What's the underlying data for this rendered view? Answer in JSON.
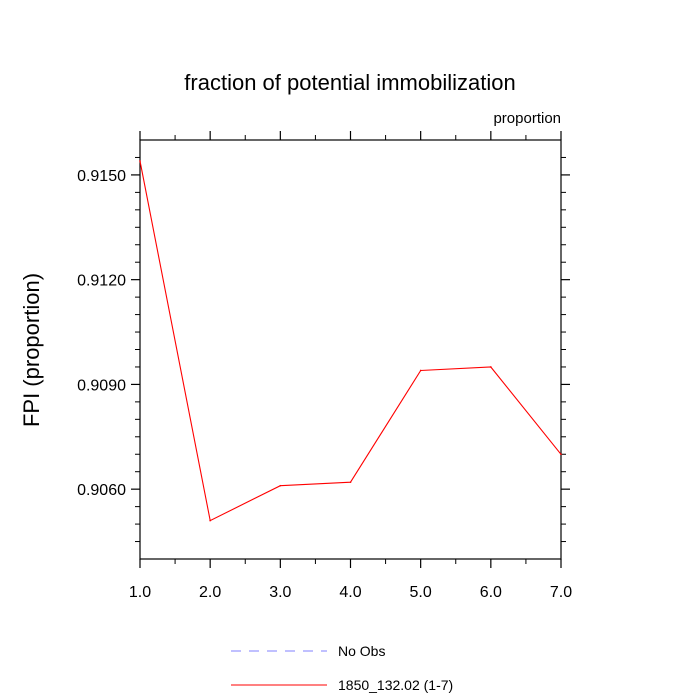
{
  "chart_data": {
    "type": "line",
    "title": "fraction of potential immobilization",
    "units_label": "proportion",
    "ylabel": "FPI  (proportion)",
    "xlabel": "",
    "xlim": [
      1.0,
      7.0
    ],
    "ylim": [
      0.904,
      0.916
    ],
    "x_ticks": [
      "1.0",
      "2.0",
      "3.0",
      "4.0",
      "5.0",
      "6.0",
      "7.0"
    ],
    "x_tick_values": [
      1,
      2,
      3,
      4,
      5,
      6,
      7
    ],
    "y_ticks": [
      "0.9150",
      "0.9120",
      "0.9090",
      "0.9060"
    ],
    "y_tick_values": [
      0.915,
      0.912,
      0.909,
      0.906
    ],
    "y_minor_step": 0.0005,
    "x_minor_step": 0.5,
    "series": [
      {
        "name": "1850_132.02 (1-7)",
        "color": "#ff0000",
        "style": "solid",
        "x": [
          1,
          2,
          3,
          4,
          5,
          6,
          7
        ],
        "values": [
          0.9154,
          0.9051,
          0.9061,
          0.9062,
          0.9094,
          0.9095,
          0.907
        ]
      }
    ],
    "legend": [
      {
        "label": "No Obs",
        "color": "#8080ff",
        "style": "dashed"
      },
      {
        "label": "1850_132.02 (1-7)",
        "color": "#ff0000",
        "style": "solid"
      }
    ],
    "legend_placement": "bottom",
    "grid": false
  }
}
